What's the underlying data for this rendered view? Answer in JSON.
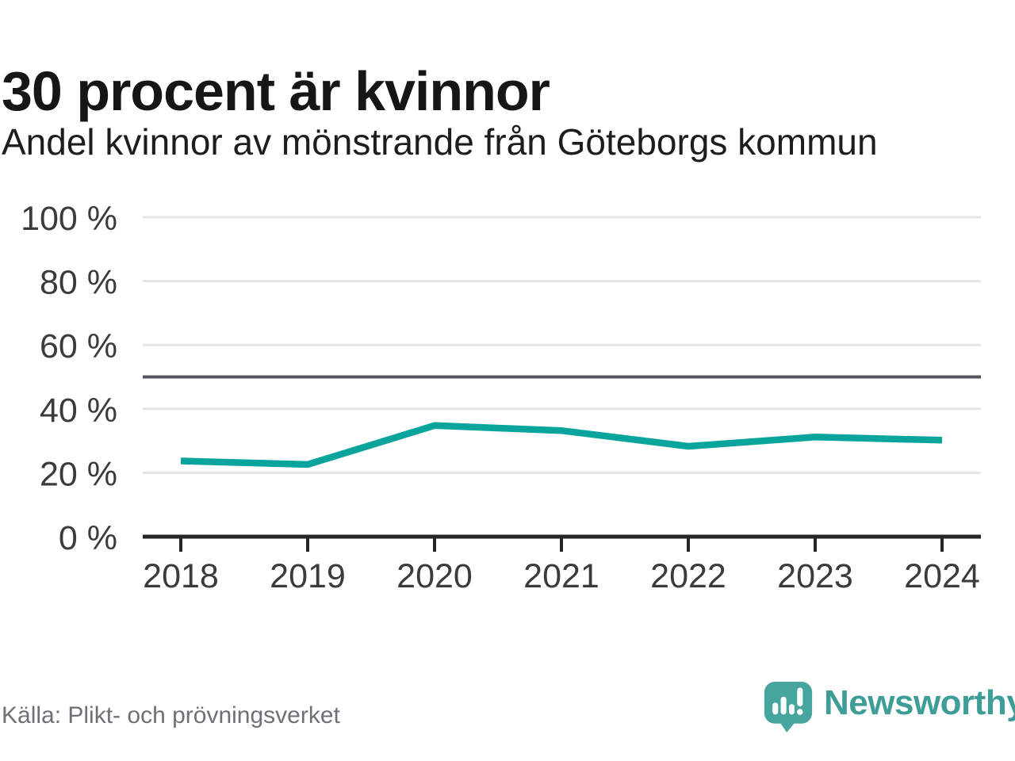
{
  "header": {
    "title": "30 procent är kvinnor",
    "subtitle": "Andel kvinnor av mönstrande från Göteborgs kommun"
  },
  "chart_data": {
    "type": "line",
    "x": [
      2018,
      2019,
      2020,
      2021,
      2022,
      2023,
      2024
    ],
    "series": [
      {
        "name": "Andel kvinnor av mönstrande",
        "color": "#09a49c",
        "values": [
          23.7,
          22.6,
          34.8,
          33.2,
          28.3,
          31.2,
          30.2
        ]
      }
    ],
    "title": "30 procent är kvinnor",
    "subtitle": "Andel kvinnor av mönstrande från Göteborgs kommun",
    "xlabel": "",
    "ylabel": "",
    "ylim": [
      0,
      100
    ],
    "y_ticks": [
      0,
      20,
      40,
      60,
      80,
      100
    ],
    "y_tick_format": "{v} %",
    "x_tick_labels": [
      "2018",
      "2019",
      "2020",
      "2021",
      "2022",
      "2023",
      "2024"
    ],
    "grid": "horizontal",
    "legend": "none",
    "reference_line": {
      "value": 50,
      "color": "#54545e"
    }
  },
  "footer": {
    "source": "Källa: Plikt- och prövningsverket",
    "brand": "Newsworthy"
  },
  "colors": {
    "accent": "#09a49c",
    "title_text": "#161616",
    "axis": "#262626",
    "tick_label": "#3b3b3b",
    "gridline": "#e4e4e4",
    "reference": "#54545e",
    "source_text": "#6f6f78",
    "logo_bubble": "#47a5a0",
    "logo_text": "#3f9d97"
  }
}
